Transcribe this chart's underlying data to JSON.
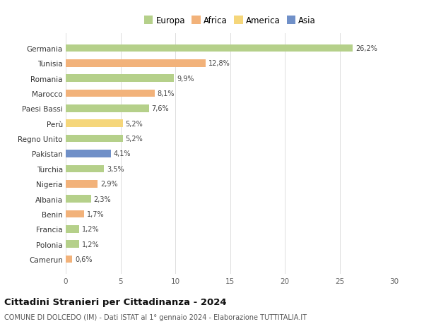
{
  "countries": [
    "Germania",
    "Tunisia",
    "Romania",
    "Marocco",
    "Paesi Bassi",
    "Perù",
    "Regno Unito",
    "Pakistan",
    "Turchia",
    "Nigeria",
    "Albania",
    "Benin",
    "Francia",
    "Polonia",
    "Camerun"
  ],
  "values": [
    26.2,
    12.8,
    9.9,
    8.1,
    7.6,
    5.2,
    5.2,
    4.1,
    3.5,
    2.9,
    2.3,
    1.7,
    1.2,
    1.2,
    0.6
  ],
  "labels": [
    "26,2%",
    "12,8%",
    "9,9%",
    "8,1%",
    "7,6%",
    "5,2%",
    "5,2%",
    "4,1%",
    "3,5%",
    "2,9%",
    "2,3%",
    "1,7%",
    "1,2%",
    "1,2%",
    "0,6%"
  ],
  "colors": [
    "#b5d08a",
    "#f2b27a",
    "#b5d08a",
    "#f2b27a",
    "#b5d08a",
    "#f5d67a",
    "#b5d08a",
    "#7090c8",
    "#b5d08a",
    "#f2b27a",
    "#b5d08a",
    "#f2b27a",
    "#b5d08a",
    "#b5d08a",
    "#f2b27a"
  ],
  "legend": {
    "Europa": "#b5d08a",
    "Africa": "#f2b27a",
    "America": "#f5d67a",
    "Asia": "#7090c8"
  },
  "xlim": [
    0,
    30
  ],
  "xticks": [
    0,
    5,
    10,
    15,
    20,
    25,
    30
  ],
  "title": "Cittadini Stranieri per Cittadinanza - 2024",
  "subtitle": "COMUNE DI DOLCEDO (IM) - Dati ISTAT al 1° gennaio 2024 - Elaborazione TUTTITALIA.IT",
  "background_color": "#ffffff",
  "bar_height": 0.5
}
